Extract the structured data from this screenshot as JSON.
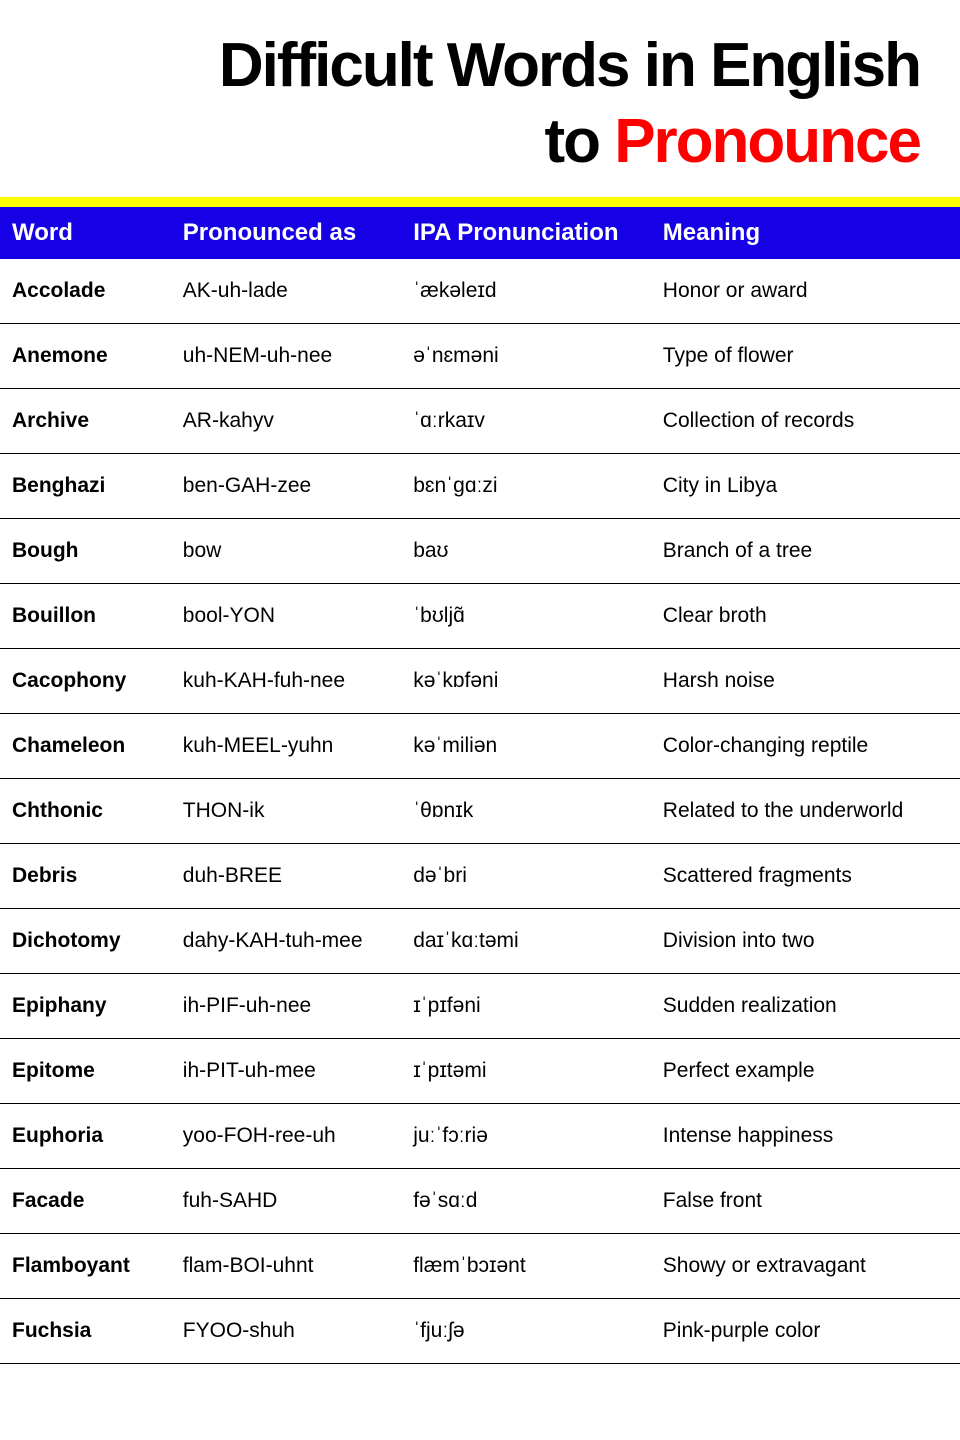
{
  "title": {
    "line1": "Difficult Words in English",
    "line2_part1": "to ",
    "line2_part2": "Pronounce"
  },
  "colors": {
    "header_bg": "#1600e6",
    "header_text": "#ffffff",
    "accent_bar": "#ffff00",
    "title_red": "#ff0000",
    "title_black": "#000000",
    "row_border": "#000000",
    "background": "#ffffff"
  },
  "table": {
    "columns": [
      "Word",
      "Pronounced as",
      "IPA Pronunciation",
      "Meaning"
    ],
    "rows": [
      {
        "word": "Accolade",
        "pron": "AK-uh-lade",
        "ipa": "ˈækəleɪd",
        "meaning": "Honor or award"
      },
      {
        "word": "Anemone",
        "pron": "uh-NEM-uh-nee",
        "ipa": "əˈnɛməni",
        "meaning": "Type of flower"
      },
      {
        "word": "Archive",
        "pron": "AR-kahyv",
        "ipa": "ˈɑːrkaɪv",
        "meaning": "Collection of records"
      },
      {
        "word": "Benghazi",
        "pron": "ben-GAH-zee",
        "ipa": "bɛnˈɡɑːzi",
        "meaning": "City in Libya"
      },
      {
        "word": "Bough",
        "pron": "bow",
        "ipa": "baʊ",
        "meaning": "Branch of a tree"
      },
      {
        "word": "Bouillon",
        "pron": "bool-YON",
        "ipa": "ˈbʊljɑ̃",
        "meaning": "Clear broth"
      },
      {
        "word": "Cacophony",
        "pron": "kuh-KAH-fuh-nee",
        "ipa": "kəˈkɒfəni",
        "meaning": "Harsh noise"
      },
      {
        "word": "Chameleon",
        "pron": "kuh-MEEL-yuhn",
        "ipa": "kəˈmiliən",
        "meaning": "Color-changing reptile"
      },
      {
        "word": "Chthonic",
        "pron": "THON-ik",
        "ipa": "ˈθɒnɪk",
        "meaning": "Related to the underworld"
      },
      {
        "word": "Debris",
        "pron": "duh-BREE",
        "ipa": "dəˈbri",
        "meaning": "Scattered fragments"
      },
      {
        "word": "Dichotomy",
        "pron": "dahy-KAH-tuh-mee",
        "ipa": "daɪˈkɑːtəmi",
        "meaning": "Division into two"
      },
      {
        "word": "Epiphany",
        "pron": "ih-PIF-uh-nee",
        "ipa": "ɪˈpɪfəni",
        "meaning": "Sudden realization"
      },
      {
        "word": "Epitome",
        "pron": "ih-PIT-uh-mee",
        "ipa": "ɪˈpɪtəmi",
        "meaning": "Perfect example"
      },
      {
        "word": "Euphoria",
        "pron": "yoo-FOH-ree-uh",
        "ipa": "juːˈfɔːriə",
        "meaning": "Intense happiness"
      },
      {
        "word": "Facade",
        "pron": "fuh-SAHD",
        "ipa": "fəˈsɑːd",
        "meaning": "False front"
      },
      {
        "word": "Flamboyant",
        "pron": "flam-BOI-uhnt",
        "ipa": "flæmˈbɔɪənt",
        "meaning": "Showy or extravagant"
      },
      {
        "word": "Fuchsia",
        "pron": "FYOO-shuh",
        "ipa": "ˈfjuːʃə",
        "meaning": "Pink-purple color"
      }
    ]
  }
}
